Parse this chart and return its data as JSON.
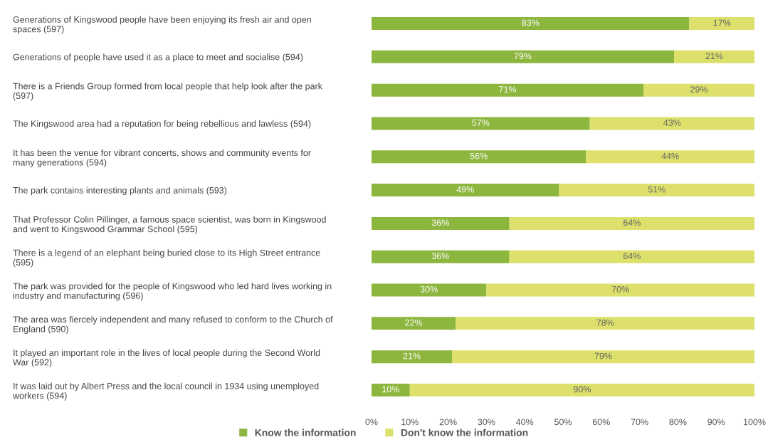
{
  "chart_data": {
    "type": "bar",
    "orientation": "horizontal",
    "stacked": true,
    "categories": [
      "Generations of Kingswood people have been enjoying its fresh air and open\nspaces (597)",
      "Generations of people have used it as a place to meet and socialise (594)",
      "There is a Friends Group formed from local people that help look after the park\n(597)",
      "The Kingswood area had a reputation for being rebellious and lawless (594)",
      "It has been the venue for vibrant concerts, shows and community events for\nmany generations (594)",
      "The park contains interesting plants and animals (593)",
      "That Professor Colin Pillinger, a famous space scientist, was born in Kingswood\nand went to Kingswood Grammar School (595)",
      "There is a legend of an elephant being buried close to its High Street entrance\n(595)",
      "The park was provided for the people of Kingswood who led hard lives working in\nindustry and manufacturing (596)",
      "The area was fiercely independent and many refused to conform to the Church of\nEngland (590)",
      "It played an important role in the lives of local people during the Second World\nWar (592)",
      "It was laid out by Albert Press and the local council in 1934 using unemployed\nworkers (594)"
    ],
    "series": [
      {
        "name": "Know the information",
        "color": "#8db63f",
        "values": [
          83,
          79,
          71,
          57,
          56,
          49,
          36,
          36,
          30,
          22,
          21,
          10
        ],
        "value_labels": [
          "83%",
          "79%",
          "71%",
          "57%",
          "56%",
          "49%",
          "36%",
          "36%",
          "30%",
          "22%",
          "21%",
          "10%"
        ]
      },
      {
        "name": "Don't know the information",
        "color": "#dde06b",
        "values": [
          17,
          21,
          29,
          43,
          44,
          51,
          64,
          64,
          70,
          78,
          79,
          90
        ],
        "value_labels": [
          "17%",
          "21%",
          "29%",
          "43%",
          "44%",
          "51%",
          "64%",
          "64%",
          "70%",
          "78%",
          "79%",
          "90%"
        ]
      }
    ],
    "xlim": [
      0,
      100
    ],
    "xticks": [
      {
        "value": 0,
        "label": "0%"
      },
      {
        "value": 10,
        "label": "10%"
      },
      {
        "value": 20,
        "label": "20%"
      },
      {
        "value": 30,
        "label": "30%"
      },
      {
        "value": 40,
        "label": "40%"
      },
      {
        "value": 50,
        "label": "50%"
      },
      {
        "value": 60,
        "label": "60%"
      },
      {
        "value": 70,
        "label": "70%"
      },
      {
        "value": 80,
        "label": "80%"
      },
      {
        "value": 90,
        "label": "90%"
      },
      {
        "value": 100,
        "label": "100%"
      }
    ],
    "grid": false,
    "legend": "bottom"
  }
}
